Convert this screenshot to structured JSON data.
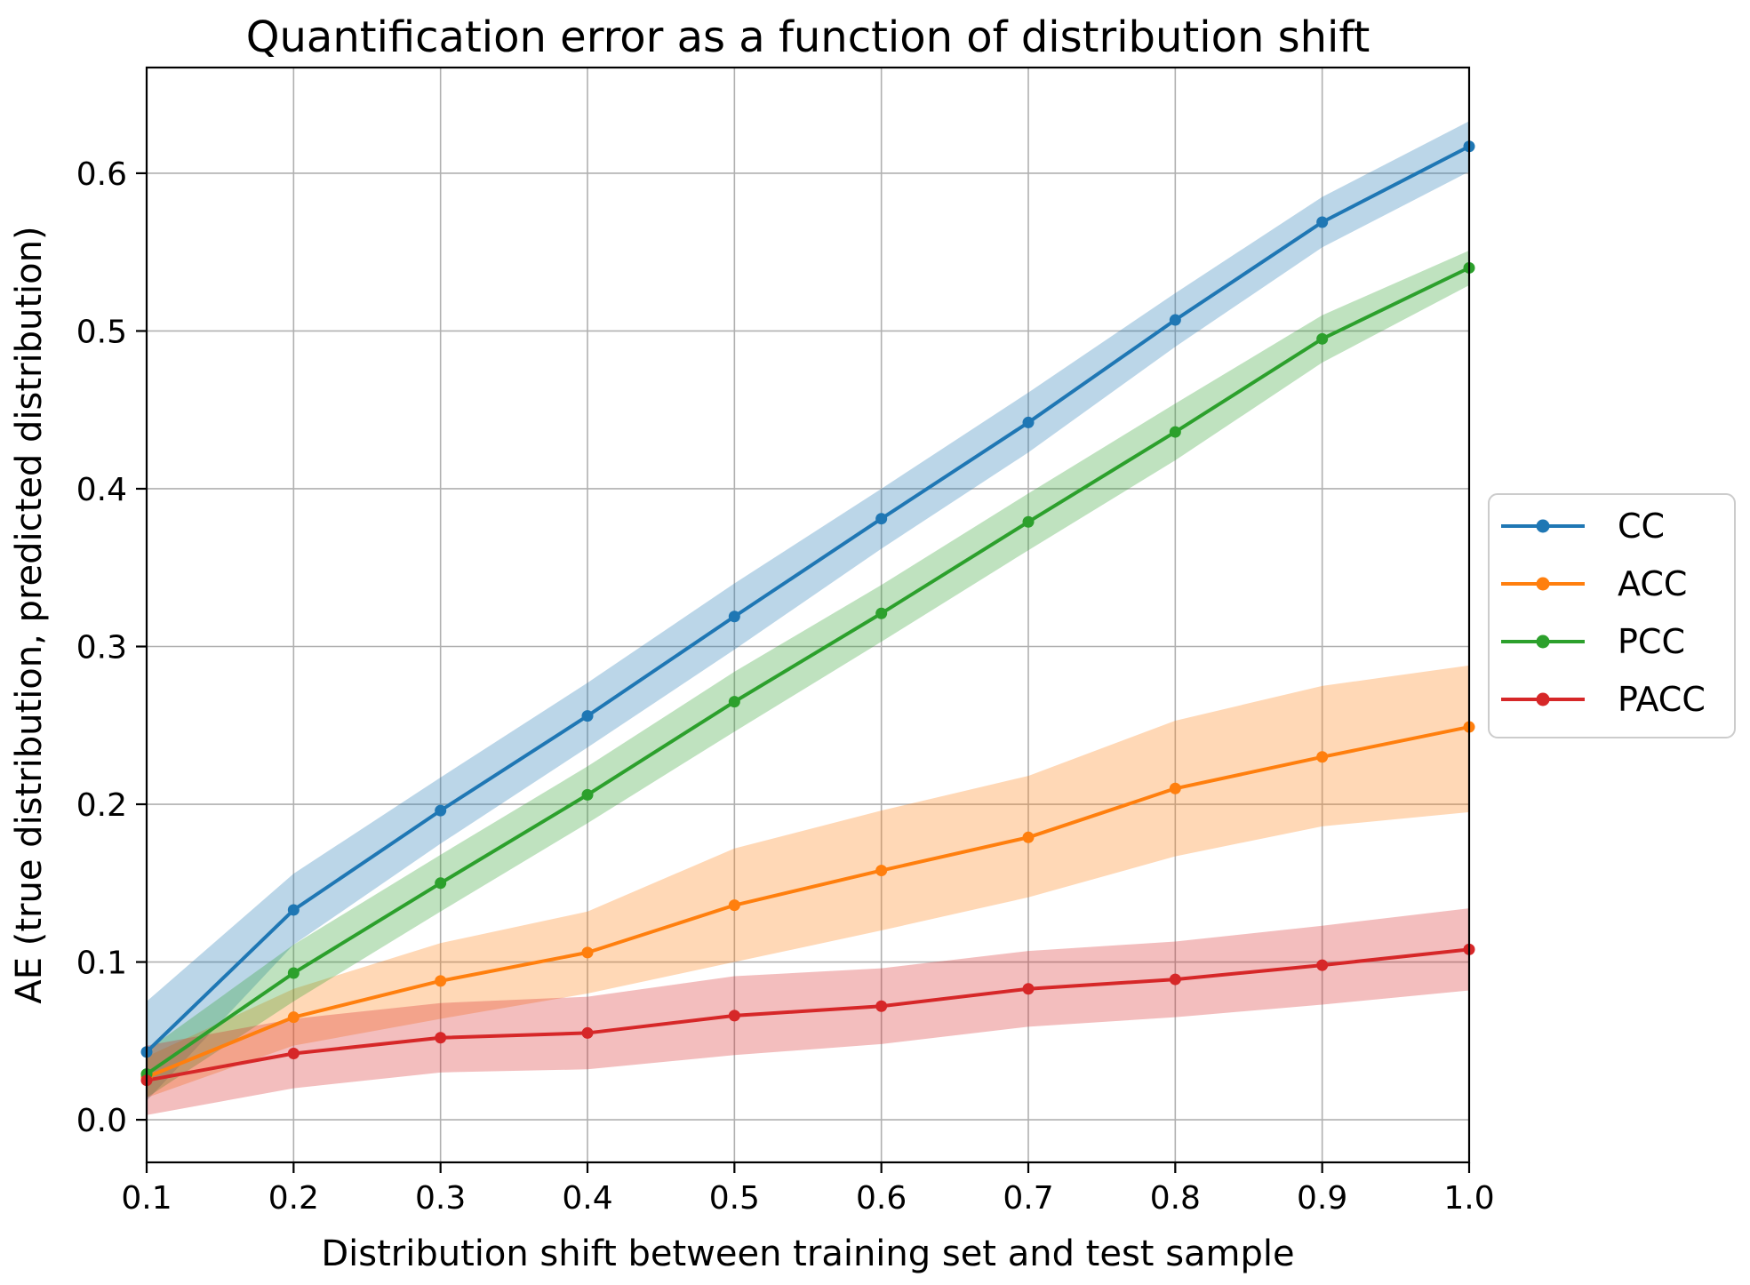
{
  "figure": {
    "title": "Quantification error as a function of distribution shift",
    "xlabel": "Distribution shift between training set and test sample",
    "ylabel": "AE (true distribution, predicted distribution)"
  },
  "chart_data": {
    "type": "line",
    "x": [
      0.1,
      0.2,
      0.3,
      0.4,
      0.5,
      0.6,
      0.7,
      0.8,
      0.9,
      1.0
    ],
    "series": [
      {
        "name": "CC",
        "color": "#1f77b4",
        "values": [
          0.043,
          0.133,
          0.196,
          0.256,
          0.319,
          0.381,
          0.442,
          0.507,
          0.569,
          0.617
        ],
        "band_upper": [
          0.075,
          0.156,
          0.217,
          0.277,
          0.34,
          0.4,
          0.461,
          0.524,
          0.585,
          0.633
        ],
        "band_lower": [
          0.012,
          0.111,
          0.175,
          0.236,
          0.298,
          0.362,
          0.423,
          0.49,
          0.553,
          0.601
        ]
      },
      {
        "name": "ACC",
        "color": "#ff7f0e",
        "values": [
          0.027,
          0.065,
          0.088,
          0.106,
          0.136,
          0.158,
          0.179,
          0.21,
          0.23,
          0.249
        ],
        "band_upper": [
          0.04,
          0.083,
          0.112,
          0.132,
          0.172,
          0.196,
          0.218,
          0.253,
          0.275,
          0.288
        ],
        "band_lower": [
          0.014,
          0.047,
          0.064,
          0.08,
          0.1,
          0.12,
          0.141,
          0.167,
          0.186,
          0.195
        ]
      },
      {
        "name": "PCC",
        "color": "#2ca02c",
        "values": [
          0.029,
          0.093,
          0.15,
          0.206,
          0.265,
          0.321,
          0.379,
          0.436,
          0.495,
          0.54
        ],
        "band_upper": [
          0.044,
          0.111,
          0.168,
          0.224,
          0.284,
          0.339,
          0.397,
          0.454,
          0.51,
          0.551
        ],
        "band_lower": [
          0.014,
          0.075,
          0.132,
          0.188,
          0.246,
          0.303,
          0.361,
          0.418,
          0.48,
          0.529
        ]
      },
      {
        "name": "PACC",
        "color": "#d62728",
        "values": [
          0.025,
          0.042,
          0.052,
          0.055,
          0.066,
          0.072,
          0.083,
          0.089,
          0.098,
          0.108
        ],
        "band_upper": [
          0.047,
          0.064,
          0.074,
          0.078,
          0.091,
          0.096,
          0.107,
          0.113,
          0.123,
          0.134
        ],
        "band_lower": [
          0.003,
          0.02,
          0.03,
          0.032,
          0.041,
          0.048,
          0.059,
          0.065,
          0.073,
          0.082
        ]
      }
    ],
    "title": "Quantification error as a function of distribution shift",
    "xlabel": "Distribution shift between training set and test sample",
    "ylabel": "AE (true distribution, predicted distribution)",
    "xlim": [
      0.1,
      1.0
    ],
    "ylim": [
      -0.027,
      0.667
    ],
    "xtick_labels": [
      "0.1",
      "0.2",
      "0.3",
      "0.4",
      "0.5",
      "0.6",
      "0.7",
      "0.8",
      "0.9",
      "1.0"
    ],
    "ytick_labels": [
      "0.0",
      "0.1",
      "0.2",
      "0.3",
      "0.4",
      "0.5",
      "0.6"
    ],
    "grid": true,
    "grid_color": "#b0b0b0",
    "spine_color": "#000000",
    "band_opacity": 0.3,
    "legend_position": "right-outside",
    "legend_entries": [
      "CC",
      "ACC",
      "PCC",
      "PACC"
    ]
  }
}
